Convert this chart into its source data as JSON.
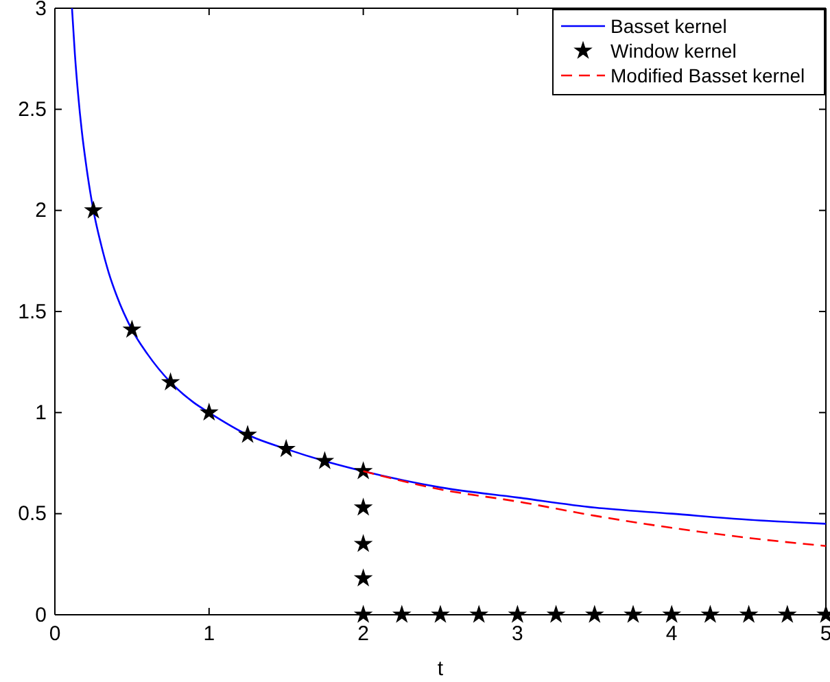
{
  "chart_data": {
    "type": "line",
    "xlabel": "t",
    "xlim": [
      0,
      5
    ],
    "ylim": [
      0,
      3
    ],
    "xticks": [
      0,
      1,
      2,
      3,
      4,
      5
    ],
    "yticks": [
      0,
      0.5,
      1,
      1.5,
      2,
      2.5,
      3
    ],
    "grid": false,
    "legend": "top right",
    "series": [
      {
        "name": "Basset kernel",
        "color": "#0000ff",
        "line_style": "solid",
        "marker": "none",
        "x": [
          0.111,
          0.13,
          0.15,
          0.175,
          0.2,
          0.25,
          0.3,
          0.35,
          0.4,
          0.5,
          0.6,
          0.75,
          0.9,
          1,
          1.25,
          1.5,
          1.75,
          2,
          2.5,
          3,
          3.5,
          4,
          4.5,
          5
        ],
        "values": [
          3,
          2.77,
          2.58,
          2.39,
          2.24,
          2,
          1.83,
          1.69,
          1.58,
          1.41,
          1.29,
          1.15,
          1.05,
          1,
          0.89,
          0.82,
          0.76,
          0.71,
          0.63,
          0.58,
          0.53,
          0.5,
          0.47,
          0.45
        ]
      },
      {
        "name": "Window kernel",
        "type": "scatter",
        "color": "#000000",
        "marker": "star",
        "x": [
          0.25,
          0.5,
          0.75,
          1,
          1.25,
          1.5,
          1.75,
          2,
          2,
          2,
          2,
          2,
          2.25,
          2.5,
          2.75,
          3,
          3.25,
          3.5,
          3.75,
          4,
          4.25,
          4.5,
          4.75,
          5
        ],
        "values": [
          2,
          1.41,
          1.15,
          1,
          0.89,
          0.82,
          0.76,
          0.71,
          0.53,
          0.35,
          0.18,
          0,
          0,
          0,
          0,
          0,
          0,
          0,
          0,
          0,
          0,
          0,
          0,
          0
        ]
      },
      {
        "name": "Modified Basset kernel",
        "color": "#ff0000",
        "line_style": "dashed",
        "marker": "none",
        "x": [
          2,
          2.5,
          3,
          3.5,
          4,
          4.5,
          5
        ],
        "values": [
          0.71,
          0.62,
          0.56,
          0.49,
          0.43,
          0.38,
          0.34
        ]
      }
    ]
  }
}
